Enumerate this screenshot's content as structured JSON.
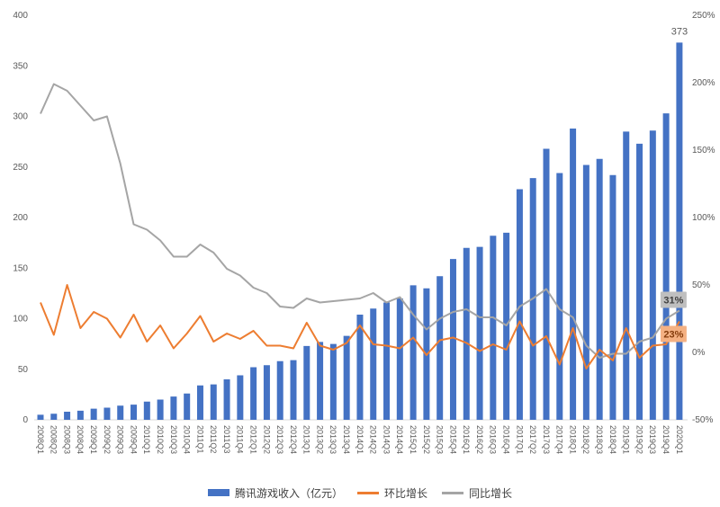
{
  "chart_data": {
    "type": "bar",
    "title": "",
    "categories": [
      "2008Q1",
      "2008Q2",
      "2008Q3",
      "2008Q4",
      "2009Q1",
      "2009Q2",
      "2009Q3",
      "2009Q4",
      "2010Q1",
      "2010Q2",
      "2010Q3",
      "2010Q4",
      "2011Q1",
      "2011Q2",
      "2011Q3",
      "2011Q4",
      "2012Q1",
      "2012Q2",
      "2012Q3",
      "2012Q4",
      "2013Q1",
      "2013Q2",
      "2013Q3",
      "2013Q4",
      "2014Q1",
      "2014Q2",
      "2014Q3",
      "2014Q4",
      "2015Q1",
      "2015Q2",
      "2015Q3",
      "2015Q4",
      "2016Q1",
      "2016Q2",
      "2016Q3",
      "2016Q4",
      "2017Q1",
      "2017Q2",
      "2017Q3",
      "2017Q4",
      "2018Q1",
      "2018Q2",
      "2018Q3",
      "2018Q4",
      "2019Q1",
      "2019Q2",
      "2019Q3",
      "2019Q4",
      "2020Q1"
    ],
    "series": [
      {
        "name": "腾讯游戏收入（亿元）",
        "type": "bar",
        "axis": "left",
        "color": "#4472C4",
        "values": [
          5,
          6,
          8,
          9,
          11,
          12,
          14,
          15,
          18,
          20,
          23,
          26,
          34,
          35,
          40,
          44,
          52,
          54,
          58,
          59,
          73,
          77,
          75,
          83,
          104,
          110,
          116,
          120,
          133,
          130,
          142,
          159,
          170,
          171,
          182,
          185,
          228,
          239,
          268,
          244,
          288,
          252,
          258,
          242,
          285,
          273,
          286,
          303,
          373
        ]
      },
      {
        "name": "环比增长",
        "type": "line",
        "axis": "right",
        "unit": "%",
        "color": "#ED7D31",
        "values": [
          37,
          13,
          50,
          18,
          30,
          25,
          11,
          28,
          8,
          20,
          3,
          14,
          27,
          8,
          14,
          10,
          16,
          5,
          5,
          3,
          22,
          5,
          2,
          7,
          20,
          6,
          5,
          3,
          11,
          -2,
          9,
          11,
          7,
          1,
          6,
          2,
          23,
          5,
          12,
          -9,
          18,
          -12,
          2,
          -6,
          18,
          -4,
          5,
          6,
          23
        ]
      },
      {
        "name": "同比增长",
        "type": "line",
        "axis": "right",
        "unit": "%",
        "color": "#A5A5A5",
        "values": [
          177,
          199,
          194,
          183,
          172,
          175,
          140,
          95,
          91,
          83,
          71,
          71,
          80,
          74,
          62,
          57,
          48,
          44,
          34,
          33,
          40,
          37,
          38,
          39,
          40,
          44,
          37,
          41,
          28,
          17,
          25,
          30,
          32,
          26,
          26,
          20,
          34,
          40,
          47,
          32,
          26,
          5,
          -4,
          -1,
          -1,
          8,
          11,
          25,
          31
        ]
      }
    ],
    "left_axis": {
      "min": 0,
      "max": 400,
      "step": 50,
      "ticks": [
        "0",
        "50",
        "100",
        "150",
        "200",
        "250",
        "300",
        "350",
        "400"
      ]
    },
    "right_axis": {
      "min": -50,
      "max": 250,
      "step": 50,
      "ticks": [
        "-50%",
        "0%",
        "50%",
        "100%",
        "150%",
        "200%",
        "250%"
      ]
    },
    "grid": "off",
    "legend_position": "bottom",
    "annotations": [
      {
        "id": "last-bar-value",
        "text": "373",
        "color": "#595959",
        "bg": "none"
      },
      {
        "id": "yoy-end-label",
        "text": "31%",
        "color": "#3F3F3F",
        "bg": "#BFBFBF"
      },
      {
        "id": "qoq-end-label",
        "text": "23%",
        "color": "#843C0C",
        "bg": "#F4B183"
      }
    ],
    "axis_text_color": "#595959",
    "baseline_color": "#D9D9D9"
  }
}
